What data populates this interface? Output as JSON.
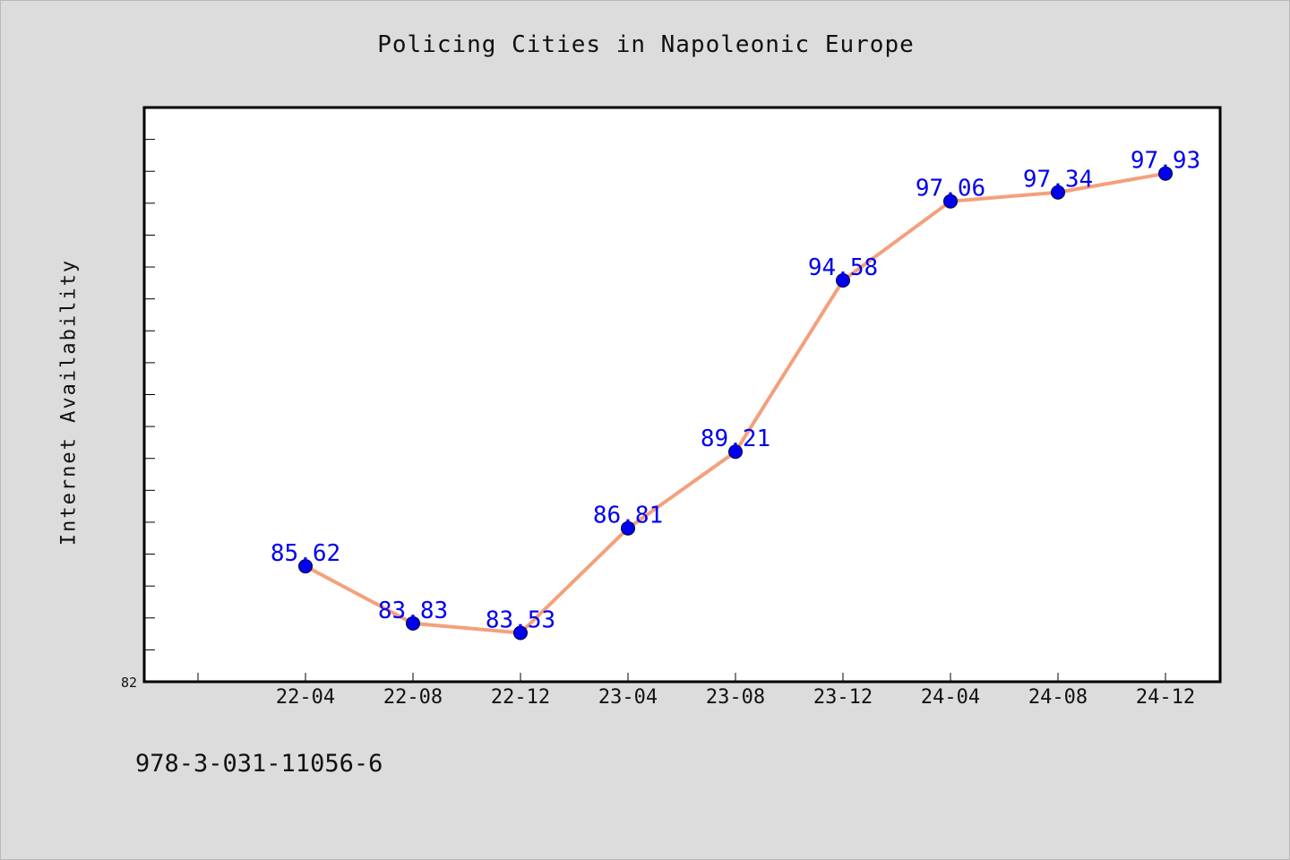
{
  "chart_data": {
    "type": "line",
    "title": "Policing Cities in Napoleonic Europe",
    "xlabel": "",
    "ylabel": "Internet Availability",
    "categories": [
      "22-04",
      "22-08",
      "22-12",
      "23-04",
      "23-08",
      "23-12",
      "24-04",
      "24-08",
      "24-12"
    ],
    "series": [
      {
        "values": [
          85.62,
          83.83,
          83.53,
          86.81,
          89.21,
          94.58,
          97.06,
          97.34,
          97.93
        ]
      }
    ],
    "data_labels": [
      "85.62",
      "83.83",
      "83.53",
      "86.81",
      "89.21",
      "94.58",
      "97.06",
      "97.34",
      "97.93"
    ],
    "y_tick_labels": [
      "82"
    ],
    "ylim": [
      82,
      100
    ],
    "grid": false,
    "legend": "none",
    "colors": {
      "line": "#f4a07c",
      "marker": "#0000ee",
      "label": "#0000ee",
      "plot_background": "#ffffff",
      "page_background": "#dcdcdc"
    }
  },
  "footer": {
    "code": "978-3-031-11056-6"
  }
}
